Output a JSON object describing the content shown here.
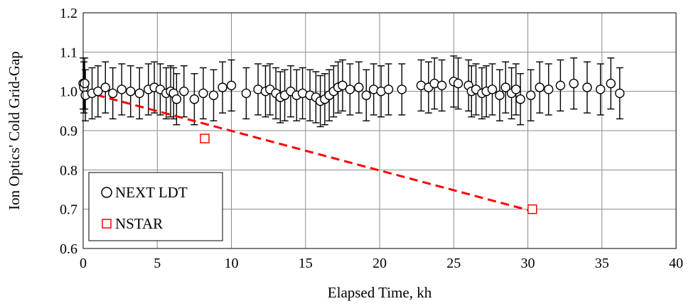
{
  "chart_data": {
    "type": "scatter",
    "title": "",
    "xlabel": "Elapsed Time, kh",
    "ylabel": "Ion Optics' Cold Grid-Gap",
    "xlim": [
      0,
      40
    ],
    "ylim": [
      0.6,
      1.2
    ],
    "xticks": [
      "0",
      "5",
      "10",
      "15",
      "20",
      "25",
      "30",
      "35",
      "40"
    ],
    "yticks": [
      "0.6",
      "0.7",
      "0.8",
      "0.9",
      "1.0",
      "1.1",
      "1.2"
    ],
    "grid": true,
    "legend_position": "bottom-left",
    "series": [
      {
        "name": "NEXT LDT",
        "marker": "open-circle",
        "color": "#000000",
        "error_bar": 0.065,
        "x": [
          0.0,
          0.05,
          0.1,
          0.15,
          0.6,
          1.0,
          1.5,
          2.0,
          2.6,
          3.2,
          3.8,
          4.4,
          4.8,
          5.2,
          5.6,
          5.9,
          6.1,
          6.3,
          6.8,
          7.5,
          8.1,
          8.8,
          9.4,
          10.0,
          11.0,
          11.8,
          12.3,
          12.6,
          13.0,
          13.3,
          13.6,
          14.0,
          14.4,
          14.8,
          15.3,
          15.7,
          16.0,
          16.3,
          16.6,
          16.9,
          17.2,
          17.5,
          18.0,
          18.6,
          19.1,
          19.6,
          20.1,
          20.6,
          21.5,
          22.8,
          23.3,
          23.7,
          24.2,
          25.0,
          25.3,
          26.0,
          26.2,
          26.5,
          26.9,
          27.2,
          27.6,
          28.1,
          28.5,
          28.9,
          29.2,
          29.5,
          30.2,
          30.8,
          31.4,
          32.2,
          33.1,
          34.0,
          34.9,
          35.6,
          36.2
        ],
        "y": [
          1.02,
          1.01,
          1.02,
          0.99,
          0.995,
          1.0,
          1.01,
          0.995,
          1.005,
          1.0,
          0.995,
          1.005,
          1.01,
          1.005,
          0.995,
          1.0,
          0.995,
          0.98,
          1.0,
          0.98,
          0.995,
          0.99,
          1.01,
          1.015,
          0.995,
          1.005,
          1.0,
          1.005,
          0.995,
          0.985,
          0.99,
          1.0,
          0.99,
          0.995,
          0.99,
          0.985,
          0.975,
          0.98,
          0.99,
          1.0,
          1.01,
          1.015,
          1.005,
          1.01,
          0.99,
          1.005,
          1.0,
          1.005,
          1.005,
          1.015,
          1.01,
          1.02,
          1.015,
          1.025,
          1.02,
          1.015,
          1.0,
          1.005,
          0.995,
          1.0,
          1.005,
          0.99,
          1.01,
          0.995,
          1.005,
          0.98,
          0.99,
          1.01,
          1.005,
          1.015,
          1.02,
          1.01,
          1.005,
          1.02,
          0.995
        ]
      },
      {
        "name": "NSTAR",
        "marker": "open-square",
        "color": "#ff0000",
        "x": [
          8.2,
          30.3
        ],
        "y": [
          0.88,
          0.7
        ]
      }
    ],
    "trend_line": {
      "style": "dashed",
      "color": "#ff0000",
      "x": [
        0,
        30.3
      ],
      "y": [
        1.0,
        0.695
      ]
    }
  }
}
